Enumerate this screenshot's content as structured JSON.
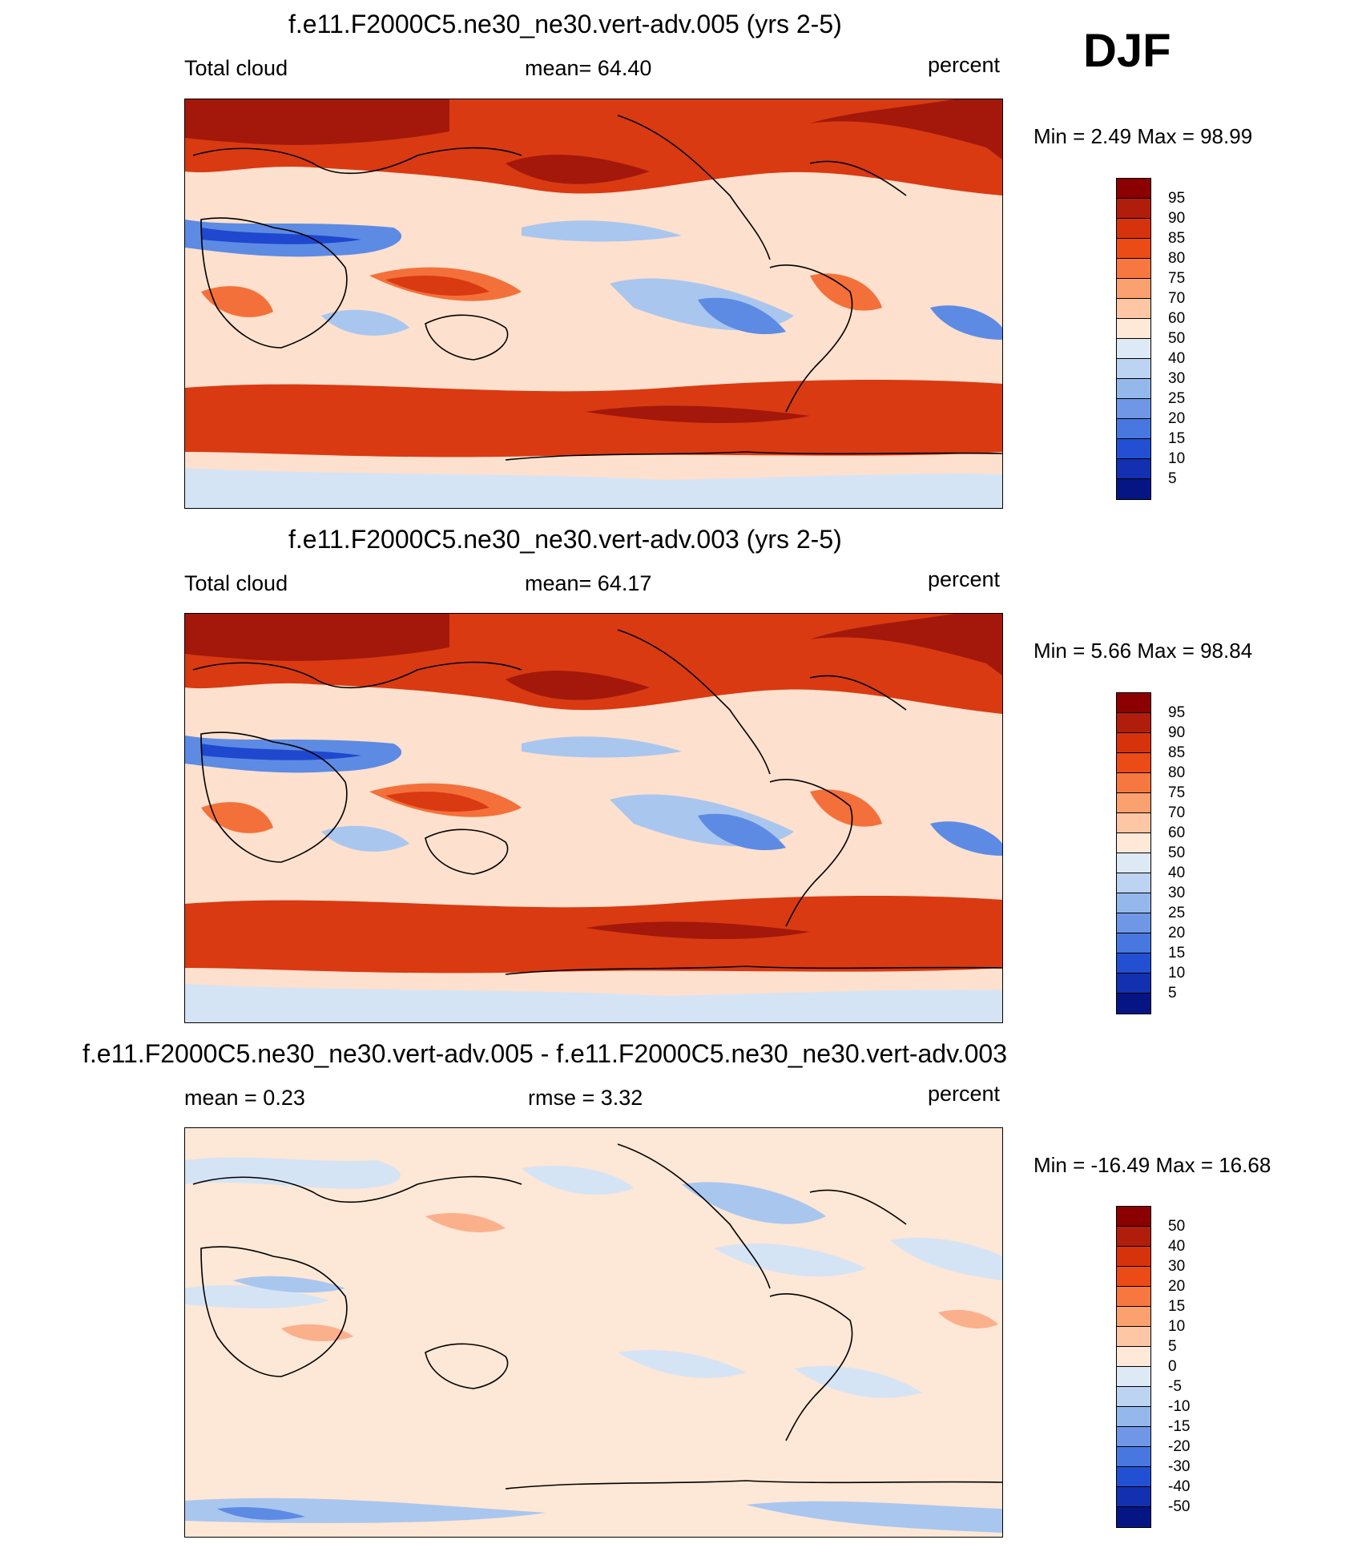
{
  "season": "DJF",
  "panels": [
    {
      "title": "f.e11.F2000C5.ne30_ne30.vert-adv.005 (yrs 2-5)",
      "left_label": "Total cloud",
      "center_label": "mean=  64.40",
      "right_label": "percent",
      "minmax": "Min =   2.49 Max =  98.99",
      "colorbar_labels": [
        "95",
        "90",
        "85",
        "80",
        "75",
        "70",
        "60",
        "50",
        "40",
        "30",
        "25",
        "20",
        "15",
        "10",
        "5"
      ],
      "colorbar_colors": [
        "#8b0000",
        "#b01e0b",
        "#d6330d",
        "#ea4b17",
        "#f67840",
        "#fba06f",
        "#fdc6a4",
        "#fee8d8",
        "#ddeaf6",
        "#bcd3f1",
        "#95b8ec",
        "#6f97e6",
        "#4877e0",
        "#2350d2",
        "#1230b0",
        "#061584"
      ]
    },
    {
      "title": "f.e11.F2000C5.ne30_ne30.vert-adv.003 (yrs 2-5)",
      "left_label": "Total cloud",
      "center_label": "mean=  64.17",
      "right_label": "percent",
      "minmax": "Min =   5.66 Max =  98.84",
      "colorbar_labels": [
        "95",
        "90",
        "85",
        "80",
        "75",
        "70",
        "60",
        "50",
        "40",
        "30",
        "25",
        "20",
        "15",
        "10",
        "5"
      ],
      "colorbar_colors": [
        "#8b0000",
        "#b01e0b",
        "#d6330d",
        "#ea4b17",
        "#f67840",
        "#fba06f",
        "#fdc6a4",
        "#fee8d8",
        "#ddeaf6",
        "#bcd3f1",
        "#95b8ec",
        "#6f97e6",
        "#4877e0",
        "#2350d2",
        "#1230b0",
        "#061584"
      ]
    },
    {
      "title": "f.e11.F2000C5.ne30_ne30.vert-adv.005 - f.e11.F2000C5.ne30_ne30.vert-adv.003",
      "left_label": "mean =   0.23",
      "center_label": "rmse =   3.32",
      "right_label": "percent",
      "minmax": "Min = -16.49 Max =  16.68",
      "colorbar_labels": [
        "50",
        "40",
        "30",
        "20",
        "15",
        "10",
        "5",
        "0",
        "-5",
        "-10",
        "-15",
        "-20",
        "-30",
        "-40",
        "-50"
      ],
      "colorbar_colors": [
        "#8b0000",
        "#b01e0b",
        "#d6330d",
        "#ea4b17",
        "#f67840",
        "#fba06f",
        "#fdc6a4",
        "#fee8d8",
        "#ddeaf6",
        "#bcd3f1",
        "#95b8ec",
        "#6f97e6",
        "#4877e0",
        "#2350d2",
        "#1230b0",
        "#061584"
      ]
    }
  ],
  "map_colors": {
    "deep_red": "#a3180a",
    "red": "#d93a12",
    "orange": "#f4703a",
    "salmon": "#fbb08c",
    "peach": "#fde0cd",
    "pale_blue": "#d5e4f5",
    "light_blue": "#a9c6ef",
    "blue": "#5d8be4",
    "deep_blue": "#1f48cf",
    "coast": "#000000"
  }
}
